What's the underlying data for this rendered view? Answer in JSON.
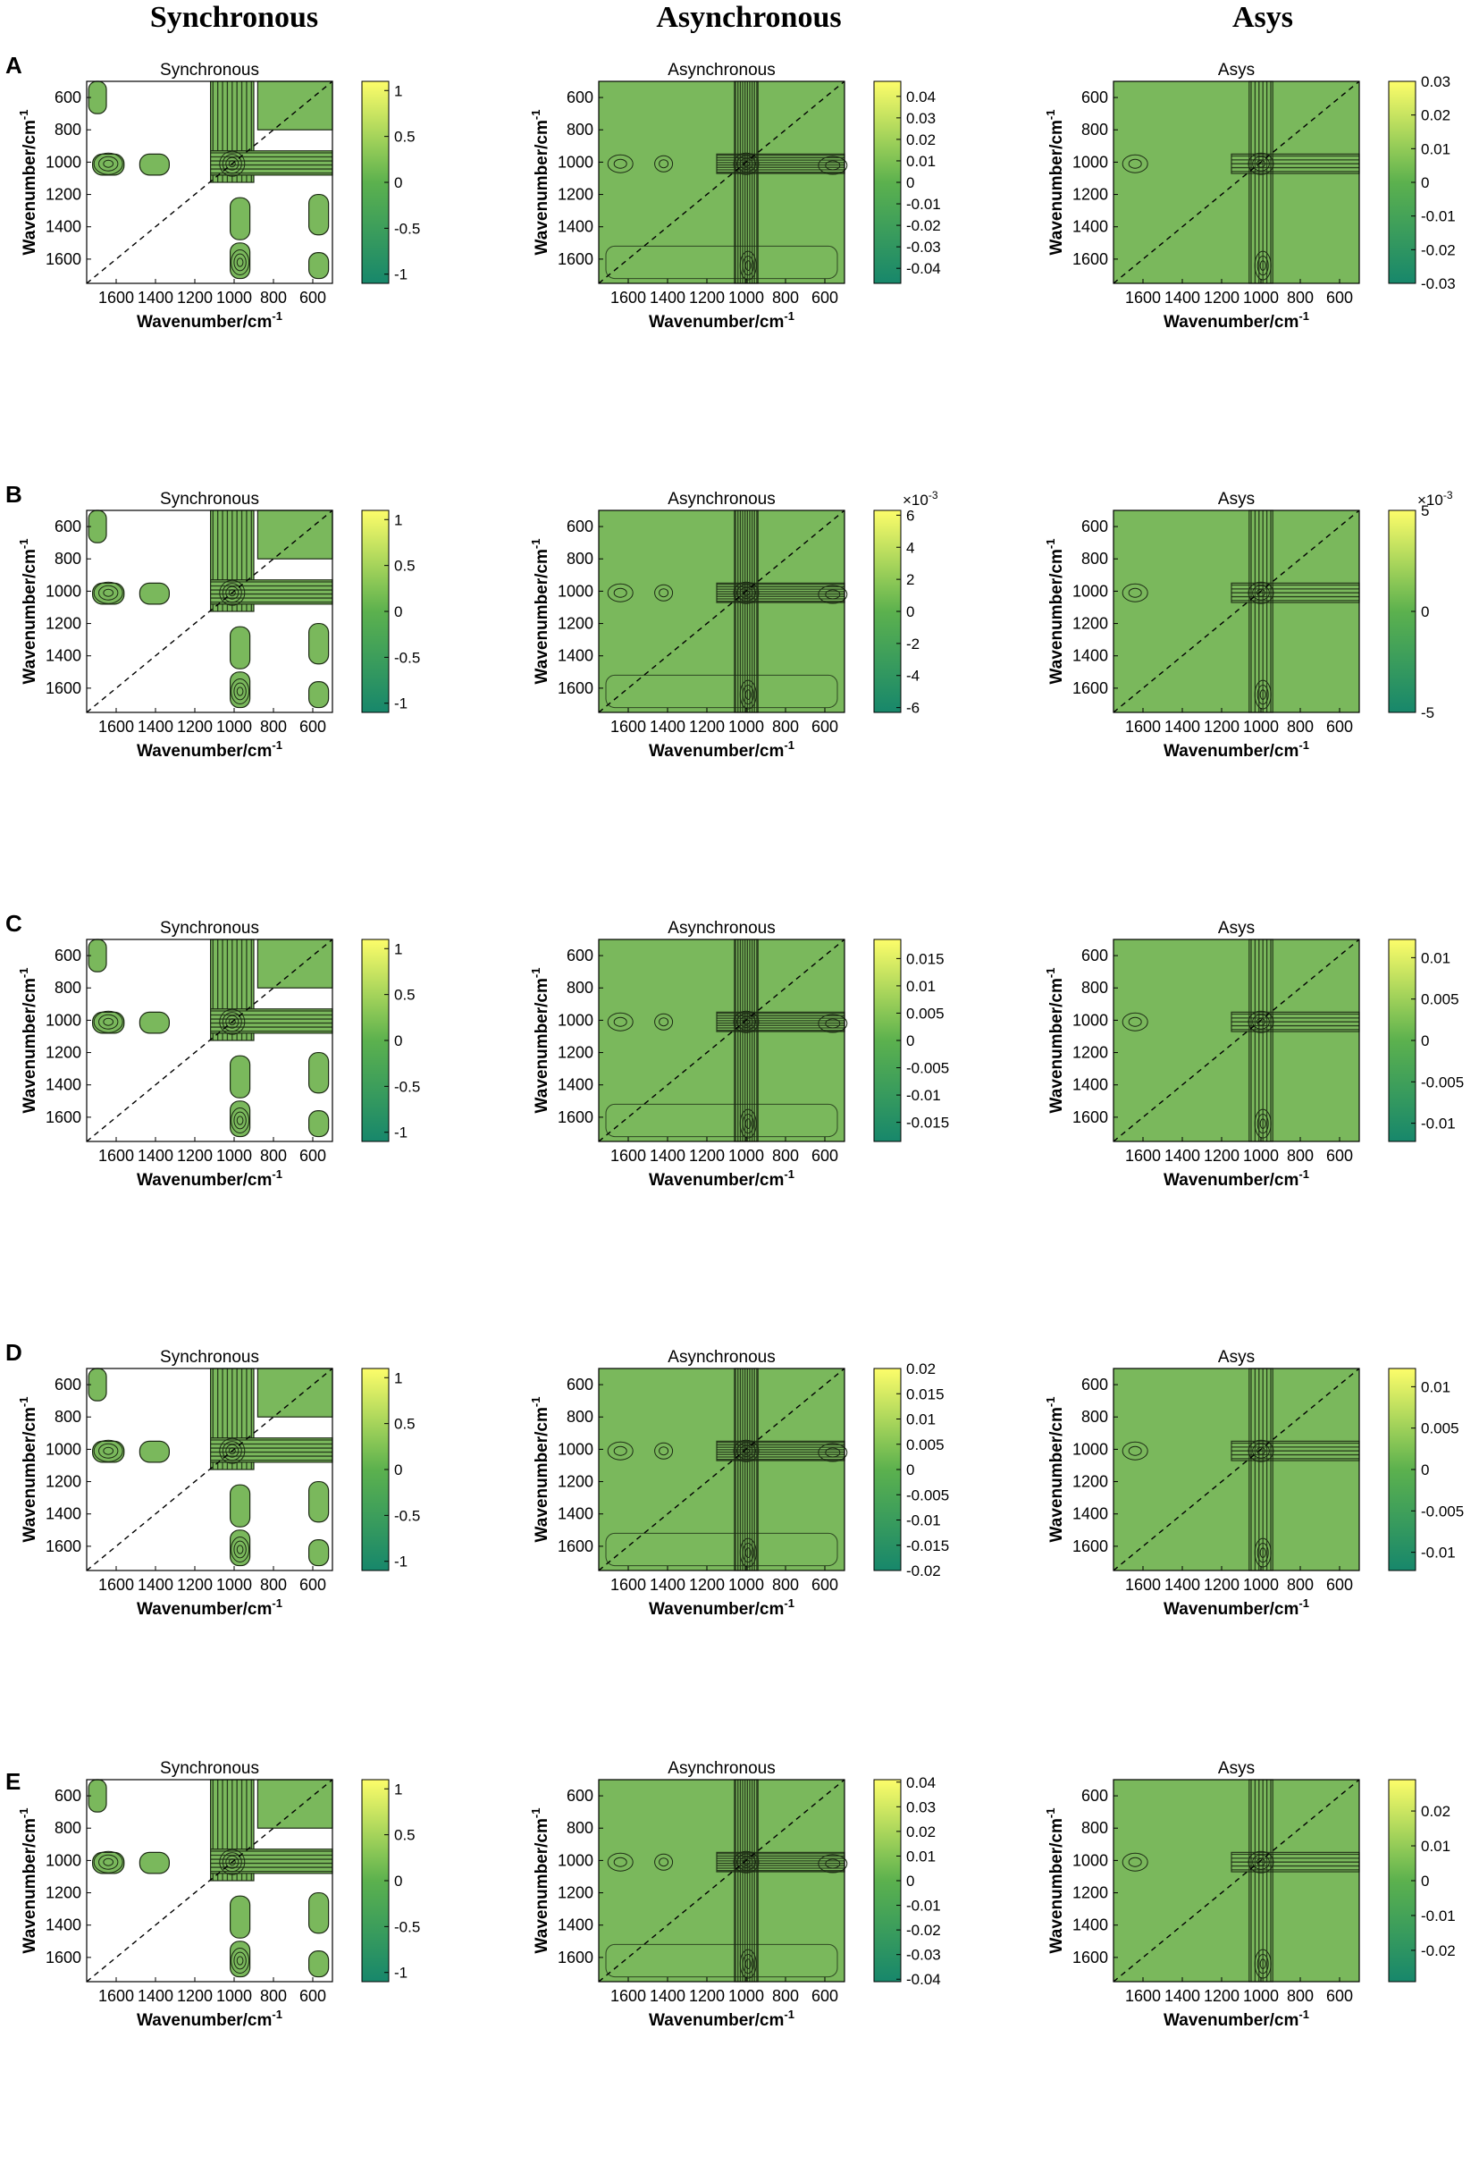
{
  "figure": {
    "column_headers": [
      "Synchronous",
      "Asynchronous",
      "Asys"
    ],
    "row_labels": [
      "A",
      "B",
      "C",
      "D",
      "E"
    ],
    "xlabel": "Wavenumber/cm",
    "ylabel": "Wavenumber/cm",
    "unit_exponent": "-1",
    "colors": {
      "plot_green": "#7ab85c",
      "contour_line": "#1c2a14",
      "colormap_low": "#17876b",
      "colormap_mid": "#5cb14e",
      "colormap_high": "#fdfd6a",
      "frame": "#000000"
    }
  },
  "chart_data": [
    {
      "id": "A-sync",
      "row": "A",
      "type": "heatmap",
      "subtype": "2D correlation contour",
      "title": "Synchronous",
      "xlim": [
        1750,
        500
      ],
      "ylim": [
        1750,
        500
      ],
      "xticks": [
        1600,
        1400,
        1200,
        1000,
        800,
        600
      ],
      "yticks": [
        600,
        800,
        1000,
        1200,
        1400,
        1600
      ],
      "colorbar": {
        "min": -1.1,
        "max": 1.1,
        "ticks": [
          1,
          0.5,
          0,
          -0.5,
          -1
        ],
        "tick_labels": [
          "1",
          "0.5",
          "0",
          "-0.5",
          "-1"
        ],
        "exponent": null
      },
      "diagonal": "dashed"
    },
    {
      "id": "A-async",
      "row": "A",
      "type": "heatmap",
      "subtype": "2D correlation contour",
      "title": "Asynchronous",
      "xlim": [
        1750,
        500
      ],
      "ylim": [
        1750,
        500
      ],
      "xticks": [
        1600,
        1400,
        1200,
        1000,
        800,
        600
      ],
      "yticks": [
        600,
        800,
        1000,
        1200,
        1400,
        1600
      ],
      "colorbar": {
        "min": -0.047,
        "max": 0.047,
        "ticks": [
          0.04,
          0.03,
          0.02,
          0.01,
          0,
          -0.01,
          -0.02,
          -0.03,
          -0.04
        ],
        "tick_labels": [
          "0.04",
          "0.03",
          "0.02",
          "0.01",
          "0",
          "-0.01",
          "-0.02",
          "-0.03",
          "-0.04"
        ],
        "exponent": null
      },
      "diagonal": "dashed"
    },
    {
      "id": "A-asys",
      "row": "A",
      "type": "heatmap",
      "subtype": "2D correlation contour",
      "title": "Asys",
      "xlim": [
        1750,
        500
      ],
      "ylim": [
        1750,
        500
      ],
      "xticks": [
        1600,
        1400,
        1200,
        1000,
        800,
        600
      ],
      "yticks": [
        600,
        800,
        1000,
        1200,
        1400,
        1600
      ],
      "colorbar": {
        "min": -0.03,
        "max": 0.03,
        "ticks": [
          0.03,
          0.02,
          0.01,
          0,
          -0.01,
          -0.02,
          -0.03
        ],
        "tick_labels": [
          "0.03",
          "0.02",
          "0.01",
          "0",
          "-0.01",
          "-0.02",
          "-0.03"
        ],
        "exponent": null
      },
      "diagonal": "dashed"
    },
    {
      "id": "B-sync",
      "row": "B",
      "type": "heatmap",
      "subtype": "2D correlation contour",
      "title": "Synchronous",
      "xlim": [
        1750,
        500
      ],
      "ylim": [
        1750,
        500
      ],
      "xticks": [
        1600,
        1400,
        1200,
        1000,
        800,
        600
      ],
      "yticks": [
        600,
        800,
        1000,
        1200,
        1400,
        1600
      ],
      "colorbar": {
        "min": -1.1,
        "max": 1.1,
        "ticks": [
          1,
          0.5,
          0,
          -0.5,
          -1
        ],
        "tick_labels": [
          "1",
          "0.5",
          "0",
          "-0.5",
          "-1"
        ],
        "exponent": null
      },
      "diagonal": "dashed"
    },
    {
      "id": "B-async",
      "row": "B",
      "type": "heatmap",
      "subtype": "2D correlation contour",
      "title": "Asynchronous",
      "xlim": [
        1750,
        500
      ],
      "ylim": [
        1750,
        500
      ],
      "xticks": [
        1600,
        1400,
        1200,
        1000,
        800,
        600
      ],
      "yticks": [
        600,
        800,
        1000,
        1200,
        1400,
        1600
      ],
      "colorbar": {
        "min": -6.3,
        "max": 6.3,
        "ticks": [
          6,
          4,
          2,
          0,
          -2,
          -4,
          -6
        ],
        "tick_labels": [
          "6",
          "4",
          "2",
          "0",
          "-2",
          "-4",
          "-6"
        ],
        "exponent": "×10",
        "exponent_power": "-3"
      },
      "diagonal": "dashed"
    },
    {
      "id": "B-asys",
      "row": "B",
      "type": "heatmap",
      "subtype": "2D correlation contour",
      "title": "Asys",
      "xlim": [
        1750,
        500
      ],
      "ylim": [
        1750,
        500
      ],
      "xticks": [
        1600,
        1400,
        1200,
        1000,
        800,
        600
      ],
      "yticks": [
        600,
        800,
        1000,
        1200,
        1400,
        1600
      ],
      "colorbar": {
        "min": -5,
        "max": 5,
        "ticks": [
          5,
          0,
          -5
        ],
        "tick_labels": [
          "5",
          "0",
          "-5"
        ],
        "exponent": "×10",
        "exponent_power": "-3"
      },
      "diagonal": "dashed"
    },
    {
      "id": "C-sync",
      "row": "C",
      "type": "heatmap",
      "subtype": "2D correlation contour",
      "title": "Synchronous",
      "xlim": [
        1750,
        500
      ],
      "ylim": [
        1750,
        500
      ],
      "xticks": [
        1600,
        1400,
        1200,
        1000,
        800,
        600
      ],
      "yticks": [
        600,
        800,
        1000,
        1200,
        1400,
        1600
      ],
      "colorbar": {
        "min": -1.1,
        "max": 1.1,
        "ticks": [
          1,
          0.5,
          0,
          -0.5,
          -1
        ],
        "tick_labels": [
          "1",
          "0.5",
          "0",
          "-0.5",
          "-1"
        ],
        "exponent": null
      },
      "diagonal": "dashed"
    },
    {
      "id": "C-async",
      "row": "C",
      "type": "heatmap",
      "subtype": "2D correlation contour",
      "title": "Asynchronous",
      "xlim": [
        1750,
        500
      ],
      "ylim": [
        1750,
        500
      ],
      "xticks": [
        1600,
        1400,
        1200,
        1000,
        800,
        600
      ],
      "yticks": [
        600,
        800,
        1000,
        1200,
        1400,
        1600
      ],
      "colorbar": {
        "min": -0.0185,
        "max": 0.0185,
        "ticks": [
          0.015,
          0.01,
          0.005,
          0,
          -0.005,
          -0.01,
          -0.015
        ],
        "tick_labels": [
          "0.015",
          "0.01",
          "0.005",
          "0",
          "-0.005",
          "-0.01",
          "-0.015"
        ],
        "exponent": null
      },
      "diagonal": "dashed"
    },
    {
      "id": "C-asys",
      "row": "C",
      "type": "heatmap",
      "subtype": "2D correlation contour",
      "title": "Asys",
      "xlim": [
        1750,
        500
      ],
      "ylim": [
        1750,
        500
      ],
      "xticks": [
        1600,
        1400,
        1200,
        1000,
        800,
        600
      ],
      "yticks": [
        600,
        800,
        1000,
        1200,
        1400,
        1600
      ],
      "colorbar": {
        "min": -0.0122,
        "max": 0.0122,
        "ticks": [
          0.01,
          0.005,
          0,
          -0.005,
          -0.01
        ],
        "tick_labels": [
          "0.01",
          "0.005",
          "0",
          "-0.005",
          "-0.01"
        ],
        "exponent": null
      },
      "diagonal": "dashed"
    },
    {
      "id": "D-sync",
      "row": "D",
      "type": "heatmap",
      "subtype": "2D correlation contour",
      "title": "Synchronous",
      "xlim": [
        1750,
        500
      ],
      "ylim": [
        1750,
        500
      ],
      "xticks": [
        1600,
        1400,
        1200,
        1000,
        800,
        600
      ],
      "yticks": [
        600,
        800,
        1000,
        1200,
        1400,
        1600
      ],
      "colorbar": {
        "min": -1.1,
        "max": 1.1,
        "ticks": [
          1,
          0.5,
          0,
          -0.5,
          -1
        ],
        "tick_labels": [
          "1",
          "0.5",
          "0",
          "-0.5",
          "-1"
        ],
        "exponent": null
      },
      "diagonal": "dashed"
    },
    {
      "id": "D-async",
      "row": "D",
      "type": "heatmap",
      "subtype": "2D correlation contour",
      "title": "Asynchronous",
      "xlim": [
        1750,
        500
      ],
      "ylim": [
        1750,
        500
      ],
      "xticks": [
        1600,
        1400,
        1200,
        1000,
        800,
        600
      ],
      "yticks": [
        600,
        800,
        1000,
        1200,
        1400,
        1600
      ],
      "colorbar": {
        "min": -0.02,
        "max": 0.02,
        "ticks": [
          0.02,
          0.015,
          0.01,
          0.005,
          0,
          -0.005,
          -0.01,
          -0.015,
          -0.02
        ],
        "tick_labels": [
          "0.02",
          "0.015",
          "0.01",
          "0.005",
          "0",
          "-0.005",
          "-0.01",
          "-0.015",
          "-0.02"
        ],
        "exponent": null
      },
      "diagonal": "dashed"
    },
    {
      "id": "D-asys",
      "row": "D",
      "type": "heatmap",
      "subtype": "2D correlation contour",
      "title": "Asys",
      "xlim": [
        1750,
        500
      ],
      "ylim": [
        1750,
        500
      ],
      "xticks": [
        1600,
        1400,
        1200,
        1000,
        800,
        600
      ],
      "yticks": [
        600,
        800,
        1000,
        1200,
        1400,
        1600
      ],
      "colorbar": {
        "min": -0.0122,
        "max": 0.0122,
        "ticks": [
          0.01,
          0.005,
          0,
          -0.005,
          -0.01
        ],
        "tick_labels": [
          "0.01",
          "0.005",
          "0",
          "-0.005",
          "-0.01"
        ],
        "exponent": null
      },
      "diagonal": "dashed"
    },
    {
      "id": "E-sync",
      "row": "E",
      "type": "heatmap",
      "subtype": "2D correlation contour",
      "title": "Synchronous",
      "xlim": [
        1750,
        500
      ],
      "ylim": [
        1750,
        500
      ],
      "xticks": [
        1600,
        1400,
        1200,
        1000,
        800,
        600
      ],
      "yticks": [
        600,
        800,
        1000,
        1200,
        1400,
        1600
      ],
      "colorbar": {
        "min": -1.1,
        "max": 1.1,
        "ticks": [
          1,
          0.5,
          0,
          -0.5,
          -1
        ],
        "tick_labels": [
          "1",
          "0.5",
          "0",
          "-0.5",
          "-1"
        ],
        "exponent": null
      },
      "diagonal": "dashed"
    },
    {
      "id": "E-async",
      "row": "E",
      "type": "heatmap",
      "subtype": "2D correlation contour",
      "title": "Asynchronous",
      "xlim": [
        1750,
        500
      ],
      "ylim": [
        1750,
        500
      ],
      "xticks": [
        1600,
        1400,
        1200,
        1000,
        800,
        600
      ],
      "yticks": [
        600,
        800,
        1000,
        1200,
        1400,
        1600
      ],
      "colorbar": {
        "min": -0.041,
        "max": 0.041,
        "ticks": [
          0.04,
          0.03,
          0.02,
          0.01,
          0,
          -0.01,
          -0.02,
          -0.03,
          -0.04
        ],
        "tick_labels": [
          "0.04",
          "0.03",
          "0.02",
          "0.01",
          "0",
          "-0.01",
          "-0.02",
          "-0.03",
          "-0.04"
        ],
        "exponent": null
      },
      "diagonal": "dashed"
    },
    {
      "id": "E-asys",
      "row": "E",
      "type": "heatmap",
      "subtype": "2D correlation contour",
      "title": "Asys",
      "xlim": [
        1750,
        500
      ],
      "ylim": [
        1750,
        500
      ],
      "xticks": [
        1600,
        1400,
        1200,
        1000,
        800,
        600
      ],
      "yticks": [
        600,
        800,
        1000,
        1200,
        1400,
        1600
      ],
      "colorbar": {
        "min": -0.029,
        "max": 0.029,
        "ticks": [
          0.02,
          0.01,
          0,
          -0.01,
          -0.02
        ],
        "tick_labels": [
          "0.02",
          "0.01",
          "0",
          "-0.01",
          "-0.02"
        ],
        "exponent": null
      },
      "diagonal": "dashed"
    }
  ]
}
